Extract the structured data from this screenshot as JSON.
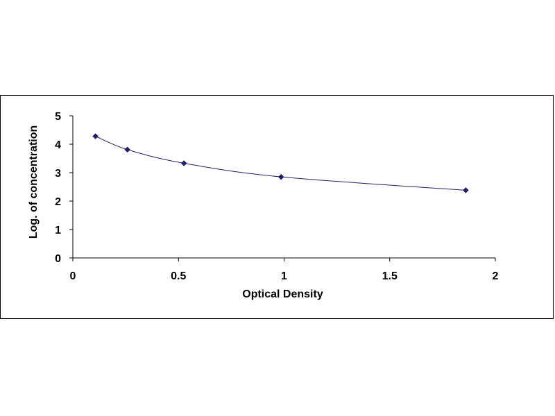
{
  "chart_data": {
    "type": "scatter",
    "title": "",
    "xlabel": "Optical Density",
    "ylabel": "Log. of concentration",
    "xlim": [
      0,
      2
    ],
    "ylim": [
      0,
      5
    ],
    "xticks": [
      "0",
      "0.5",
      "1",
      "1.5",
      "2"
    ],
    "yticks": [
      "0",
      "1",
      "2",
      "3",
      "4",
      "5"
    ],
    "grid": false,
    "legend": "none",
    "trendline": "smooth fitted curve",
    "series": [
      {
        "color": "#1f1f6b",
        "marker": "diamond",
        "points": [
          {
            "x": 0.107,
            "y": 4.28
          },
          {
            "x": 0.258,
            "y": 3.81
          },
          {
            "x": 0.526,
            "y": 3.33
          },
          {
            "x": 0.986,
            "y": 2.85
          },
          {
            "x": 1.86,
            "y": 2.38
          }
        ]
      }
    ]
  }
}
